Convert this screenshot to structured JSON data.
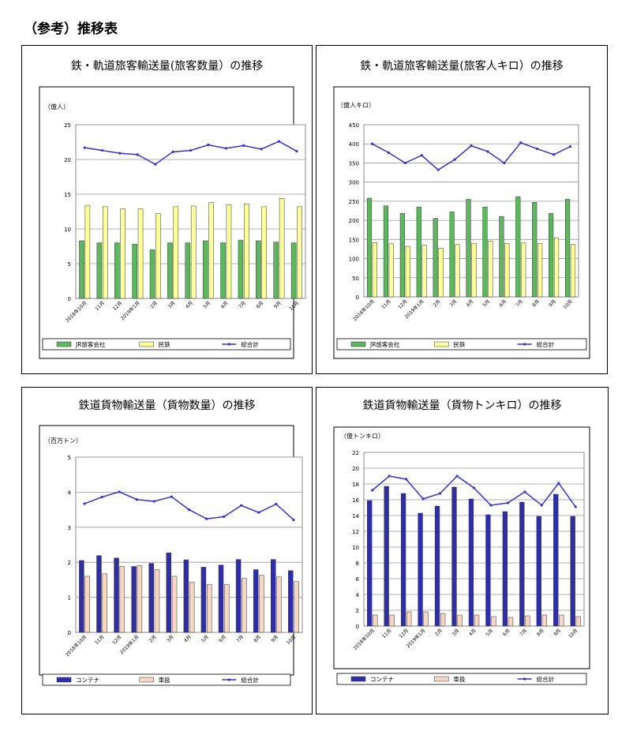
{
  "page": {
    "title": "（参考）推移表"
  },
  "charts": [
    {
      "title": "鉄・軌道旅客輸送量(旅客数量）の推移",
      "unit": "（億人）",
      "type": "bar",
      "categories": [
        "2018年10月",
        "11月",
        "12月",
        "2019年1月",
        "2月",
        "3月",
        "4月",
        "5月",
        "6月",
        "7月",
        "8月",
        "9月",
        "10月"
      ],
      "yticks": [
        "0",
        "5",
        "10",
        "15",
        "20",
        "25"
      ],
      "ylim": [
        0,
        25
      ],
      "series": [
        {
          "name": "JR旅客会社",
          "kind": "bar",
          "color": "#5cb85c",
          "values": [
            8.3,
            8.0,
            8.0,
            7.8,
            7.0,
            8.0,
            8.0,
            8.3,
            8.0,
            8.4,
            8.3,
            8.1,
            8.0
          ]
        },
        {
          "name": "民鉄",
          "kind": "bar",
          "color": "#ffff99",
          "values": [
            13.4,
            13.2,
            12.9,
            12.9,
            12.2,
            13.2,
            13.3,
            13.8,
            13.5,
            13.6,
            13.2,
            14.4,
            13.2
          ]
        },
        {
          "name": "総合計",
          "kind": "line",
          "color": "#3333cc",
          "values": [
            21.7,
            21.3,
            20.9,
            20.7,
            19.3,
            21.1,
            21.3,
            22.1,
            21.6,
            22.0,
            21.5,
            22.6,
            21.2
          ]
        }
      ]
    },
    {
      "title": "鉄・軌道旅客輸送量(旅客人キロ）の推移",
      "unit": "（億人キロ）",
      "type": "bar",
      "categories": [
        "2018年10月",
        "11月",
        "12月",
        "2019年1月",
        "2月",
        "3月",
        "4月",
        "5月",
        "6月",
        "7月",
        "8月",
        "9月",
        "10月"
      ],
      "yticks": [
        "0",
        "50",
        "100",
        "150",
        "200",
        "250",
        "300",
        "350",
        "400",
        "450"
      ],
      "ylim": [
        0,
        450
      ],
      "series": [
        {
          "name": "JR旅客会社",
          "kind": "bar",
          "color": "#5cb85c",
          "values": [
            258,
            238,
            218,
            235,
            205,
            222,
            255,
            235,
            210,
            262,
            247,
            218,
            255
          ]
        },
        {
          "name": "民鉄",
          "kind": "bar",
          "color": "#ffff99",
          "values": [
            142,
            139,
            132,
            135,
            127,
            137,
            140,
            146,
            140,
            141,
            140,
            154,
            137
          ]
        },
        {
          "name": "総合計",
          "kind": "line",
          "color": "#3333cc",
          "values": [
            400,
            377,
            350,
            370,
            332,
            359,
            395,
            380,
            350,
            403,
            387,
            372,
            393
          ]
        }
      ]
    },
    {
      "title": "鉄道貨物輸送量（貨物数量）の推移",
      "unit": "（百万トン）",
      "type": "bar",
      "categories": [
        "2018年10月",
        "11月",
        "12月",
        "2019年1月",
        "2月",
        "3月",
        "4月",
        "5月",
        "6月",
        "7月",
        "8月",
        "9月",
        "10月"
      ],
      "yticks": [
        "0",
        "1",
        "2",
        "3",
        "4",
        "5"
      ],
      "ylim": [
        0,
        5
      ],
      "series": [
        {
          "name": "コンテナ",
          "kind": "bar",
          "color": "#2e2eaa",
          "values": [
            2.05,
            2.19,
            2.12,
            1.88,
            1.97,
            2.27,
            2.07,
            1.86,
            1.92,
            2.08,
            1.79,
            2.08,
            1.76
          ]
        },
        {
          "name": "車扱",
          "kind": "bar",
          "color": "#f7d7c4",
          "values": [
            1.6,
            1.67,
            1.88,
            1.91,
            1.79,
            1.6,
            1.43,
            1.37,
            1.37,
            1.54,
            1.63,
            1.58,
            1.45
          ]
        },
        {
          "name": "総合計",
          "kind": "line",
          "color": "#3333cc",
          "values": [
            3.67,
            3.86,
            4.01,
            3.79,
            3.74,
            3.87,
            3.5,
            3.24,
            3.3,
            3.62,
            3.42,
            3.66,
            3.21
          ]
        }
      ]
    },
    {
      "title": "鉄道貨物輸送量（貨物トンキロ）の推移",
      "unit": "（億トンキロ）",
      "type": "bar",
      "categories": [
        "2018年10月",
        "11月",
        "12月",
        "2019年1月",
        "2月",
        "3月",
        "4月",
        "5月",
        "6月",
        "7月",
        "8月",
        "9月",
        "10月"
      ],
      "yticks": [
        "0",
        "2",
        "4",
        "6",
        "8",
        "10",
        "12",
        "14",
        "16",
        "18",
        "20",
        "22"
      ],
      "ylim": [
        0,
        22
      ],
      "series": [
        {
          "name": "コンテナ",
          "kind": "bar",
          "color": "#2e2eaa",
          "values": [
            15.9,
            17.7,
            16.8,
            14.3,
            15.2,
            17.6,
            16.1,
            14.1,
            14.5,
            15.7,
            13.9,
            16.7,
            13.9
          ]
        },
        {
          "name": "車扱",
          "kind": "bar",
          "color": "#f7d7c4",
          "values": [
            1.4,
            1.4,
            1.8,
            1.8,
            1.6,
            1.4,
            1.4,
            1.2,
            1.1,
            1.3,
            1.4,
            1.4,
            1.2
          ]
        },
        {
          "name": "総合計",
          "kind": "line",
          "color": "#3333cc",
          "values": [
            17.2,
            19.0,
            18.6,
            16.1,
            16.8,
            19.0,
            17.5,
            15.3,
            15.6,
            17.0,
            15.3,
            18.1,
            15.1
          ]
        }
      ]
    }
  ]
}
